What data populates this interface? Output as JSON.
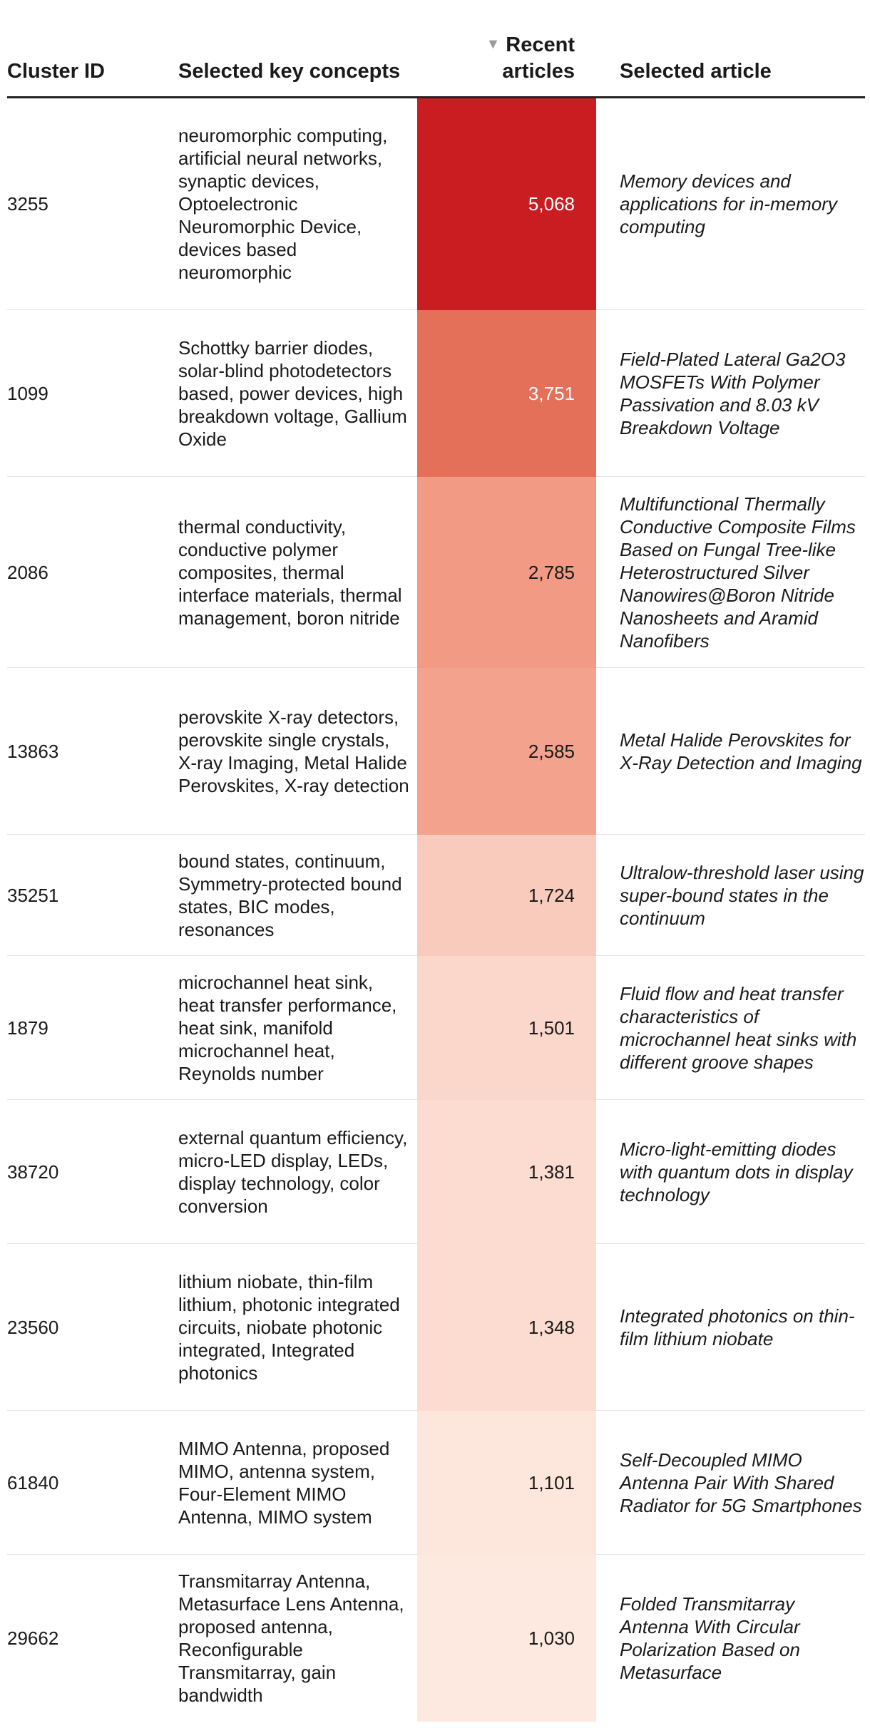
{
  "chart_data": {
    "type": "table",
    "columns": [
      "Cluster ID",
      "Selected key concepts",
      "Recent articles",
      "Selected article"
    ],
    "sort": {
      "column": "Recent articles",
      "direction": "descending",
      "icon": "sort-down-icon"
    },
    "heat_colors": {
      "max": "#c91d21",
      "min": "#fdece4",
      "text_light": "#ffffff",
      "text_dark": "#1a1a1a"
    },
    "rows": [
      {
        "cluster_id": "3255",
        "concepts": "neuromorphic computing, artificial neural networks, synaptic devices, Optoelectronic Neuromorphic Device, devices based neuromorphic",
        "articles": 5068,
        "articles_label": "5,068",
        "article": "Memory devices and applications for in-memory computing",
        "color": "#c91d21"
      },
      {
        "cluster_id": "1099",
        "concepts": "Schottky barrier diodes, solar-blind photodetectors based, power devices, high breakdown voltage, Gallium Oxide",
        "articles": 3751,
        "articles_label": "3,751",
        "article": "Field-Plated Lateral Ga2O3 MOSFETs With Polymer Passivation and 8.03 kV Breakdown Voltage",
        "color": "#e5705a"
      },
      {
        "cluster_id": "2086",
        "concepts": "thermal conductivity, conductive polymer composites, thermal interface materials, thermal management, boron nitride",
        "articles": 2785,
        "articles_label": "2,785",
        "article": "Multifunctional Thermally Conductive Composite Films Based on Fungal Tree-like Heterostructured Silver Nanowires@Boron Nitride Nanosheets and Aramid Nanofibers",
        "color": "#f29a84"
      },
      {
        "cluster_id": "13863",
        "concepts": "perovskite X-ray detectors, perovskite single crystals, X-ray Imaging, Metal Halide Perovskites, X-ray detection",
        "articles": 2585,
        "articles_label": "2,585",
        "article": "Metal Halide Perovskites for X-Ray Detection and Imaging",
        "color": "#f3a28d"
      },
      {
        "cluster_id": "35251",
        "concepts": "bound states, continuum, Symmetry-protected bound states, BIC modes, resonances",
        "articles": 1724,
        "articles_label": "1,724",
        "article": "Ultralow-threshold laser using super-bound states in the continuum",
        "color": "#f9cbbd"
      },
      {
        "cluster_id": "1879",
        "concepts": "microchannel heat sink, heat transfer performance, heat sink, manifold microchannel heat, Reynolds number",
        "articles": 1501,
        "articles_label": "1,501",
        "article": "Fluid flow and heat transfer characteristics of microchannel heat sinks with different groove shapes",
        "color": "#fbd6ca"
      },
      {
        "cluster_id": "38720",
        "concepts": "external quantum efficiency, micro-LED display, LEDs, display technology, color conversion",
        "articles": 1381,
        "articles_label": "1,381",
        "article": "Micro-light-emitting diodes with quantum dots in display technology",
        "color": "#fcdbd0"
      },
      {
        "cluster_id": "23560",
        "concepts": "lithium niobate, thin-film lithium, photonic integrated circuits, niobate photonic integrated, Integrated photonics",
        "articles": 1348,
        "articles_label": "1,348",
        "article": "Integrated photonics on thin-film lithium niobate",
        "color": "#fcdcd1"
      },
      {
        "cluster_id": "61840",
        "concepts": "MIMO Antenna, proposed MIMO, antenna system, Four-Element MIMO Antenna, MIMO system",
        "articles": 1101,
        "articles_label": "1,101",
        "article": "Self-Decoupled MIMO Antenna Pair With Shared Radiator for 5G Smartphones",
        "color": "#fde6dc"
      },
      {
        "cluster_id": "29662",
        "concepts": "Transmitarray Antenna, Metasurface Lens Antenna, proposed antenna, Reconfigurable Transmitarray, gain bandwidth",
        "articles": 1030,
        "articles_label": "1,030",
        "article": "Folded Transmitarray Antenna With Circular Polarization Based on Metasurface",
        "color": "#fde9df"
      }
    ]
  }
}
